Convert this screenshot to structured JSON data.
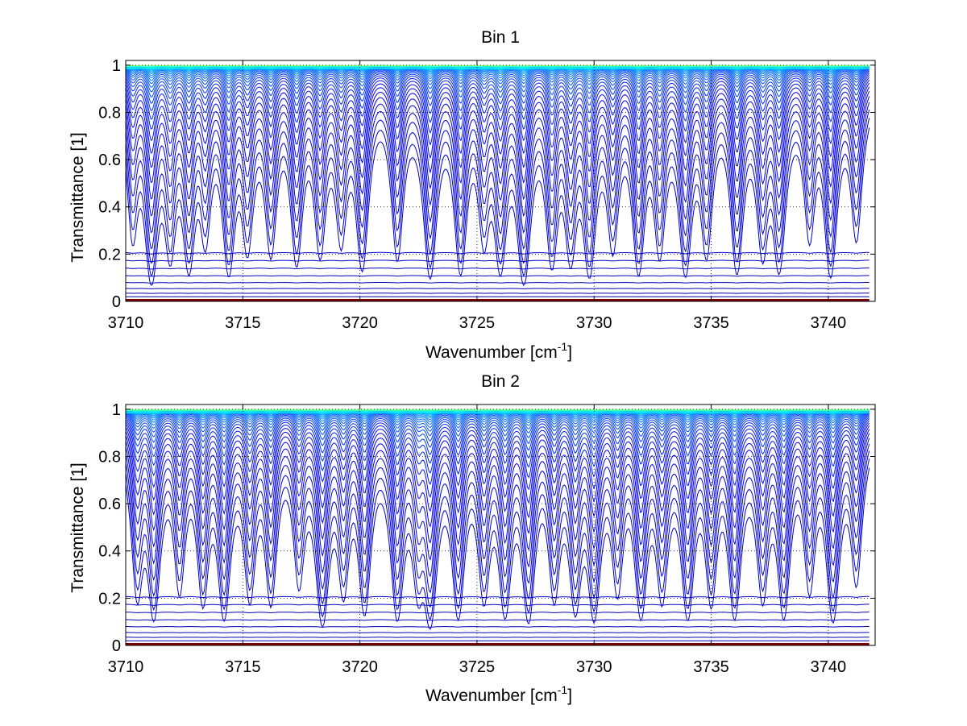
{
  "figure": {
    "background": "#ffffff"
  },
  "chart_data": [
    {
      "type": "line",
      "title": "Bin 1",
      "xlabel": "Wavenumber [cm",
      "xlabel_sup": "-1",
      "xlabel_tail": "]",
      "ylabel": "Transmittance [1]",
      "xlim": [
        3710,
        3742
      ],
      "ylim": [
        0,
        1.02
      ],
      "xticks": [
        3710,
        3715,
        3720,
        3725,
        3730,
        3735,
        3740
      ],
      "xtick_labels": [
        "3710",
        "3715",
        "3720",
        "3725",
        "3730",
        "3735",
        "3740"
      ],
      "yticks": [
        0,
        0.2,
        0.4,
        0.6,
        0.8,
        1
      ],
      "ytick_labels": [
        "0",
        "0.2",
        "0.4",
        "0.6",
        "0.8",
        "1"
      ],
      "grid": "dotted",
      "legend": "none",
      "colormap": "jet (dark red → orange → yellow → cyan), one color per curve",
      "absorption_lines": [
        {
          "x": 3710.3,
          "depth": 0.45
        },
        {
          "x": 3711.1,
          "depth": 0.9
        },
        {
          "x": 3711.9,
          "depth": 0.55
        },
        {
          "x": 3712.7,
          "depth": 0.7
        },
        {
          "x": 3713.4,
          "depth": 0.45
        },
        {
          "x": 3714.4,
          "depth": 0.75
        },
        {
          "x": 3715.2,
          "depth": 0.5
        },
        {
          "x": 3716.2,
          "depth": 0.55
        },
        {
          "x": 3717.3,
          "depth": 0.65
        },
        {
          "x": 3718.3,
          "depth": 0.55
        },
        {
          "x": 3719.2,
          "depth": 0.45
        },
        {
          "x": 3720.1,
          "depth": 0.7
        },
        {
          "x": 3721.6,
          "depth": 0.6
        },
        {
          "x": 3723.0,
          "depth": 0.8
        },
        {
          "x": 3724.3,
          "depth": 0.75
        },
        {
          "x": 3725.3,
          "depth": 0.45
        },
        {
          "x": 3726.0,
          "depth": 0.7
        },
        {
          "x": 3727.0,
          "depth": 0.9
        },
        {
          "x": 3728.2,
          "depth": 0.65
        },
        {
          "x": 3729.0,
          "depth": 0.6
        },
        {
          "x": 3729.8,
          "depth": 0.75
        },
        {
          "x": 3730.8,
          "depth": 0.5
        },
        {
          "x": 3731.9,
          "depth": 0.75
        },
        {
          "x": 3732.8,
          "depth": 0.55
        },
        {
          "x": 3733.9,
          "depth": 0.75
        },
        {
          "x": 3734.8,
          "depth": 0.55
        },
        {
          "x": 3736.1,
          "depth": 0.75
        },
        {
          "x": 3737.2,
          "depth": 0.55
        },
        {
          "x": 3737.9,
          "depth": 0.7
        },
        {
          "x": 3739.2,
          "depth": 0.45
        },
        {
          "x": 3740.1,
          "depth": 0.8
        },
        {
          "x": 3741.2,
          "depth": 0.45
        }
      ],
      "line_width_cm1": 0.22,
      "curve_count": 40
    },
    {
      "type": "line",
      "title": "Bin 2",
      "xlabel": "Wavenumber [cm",
      "xlabel_sup": "-1",
      "xlabel_tail": "]",
      "ylabel": "Transmittance [1]",
      "xlim": [
        3710,
        3742
      ],
      "ylim": [
        0,
        1.02
      ],
      "xticks": [
        3710,
        3715,
        3720,
        3725,
        3730,
        3735,
        3740
      ],
      "xtick_labels": [
        "3710",
        "3715",
        "3720",
        "3725",
        "3730",
        "3735",
        "3740"
      ],
      "yticks": [
        0,
        0.2,
        0.4,
        0.6,
        0.8,
        1
      ],
      "ytick_labels": [
        "0",
        "0.2",
        "0.4",
        "0.6",
        "0.8",
        "1"
      ],
      "grid": "dotted",
      "legend": "none",
      "colormap": "jet (dark red → orange → yellow → cyan), one color per curve",
      "absorption_lines": [
        {
          "x": 3710.5,
          "depth": 0.55
        },
        {
          "x": 3711.2,
          "depth": 0.75
        },
        {
          "x": 3712.3,
          "depth": 0.5
        },
        {
          "x": 3713.3,
          "depth": 0.6
        },
        {
          "x": 3714.2,
          "depth": 0.75
        },
        {
          "x": 3715.3,
          "depth": 0.55
        },
        {
          "x": 3716.2,
          "depth": 0.6
        },
        {
          "x": 3717.4,
          "depth": 0.45
        },
        {
          "x": 3718.4,
          "depth": 0.85
        },
        {
          "x": 3719.3,
          "depth": 0.5
        },
        {
          "x": 3720.2,
          "depth": 0.7
        },
        {
          "x": 3721.6,
          "depth": 0.75
        },
        {
          "x": 3722.5,
          "depth": 0.45
        },
        {
          "x": 3723.0,
          "depth": 0.85
        },
        {
          "x": 3724.2,
          "depth": 0.75
        },
        {
          "x": 3725.3,
          "depth": 0.55
        },
        {
          "x": 3726.2,
          "depth": 0.7
        },
        {
          "x": 3727.2,
          "depth": 0.8
        },
        {
          "x": 3728.3,
          "depth": 0.55
        },
        {
          "x": 3729.2,
          "depth": 0.65
        },
        {
          "x": 3730.0,
          "depth": 0.75
        },
        {
          "x": 3731.0,
          "depth": 0.5
        },
        {
          "x": 3732.0,
          "depth": 0.75
        },
        {
          "x": 3732.9,
          "depth": 0.55
        },
        {
          "x": 3734.0,
          "depth": 0.75
        },
        {
          "x": 3735.0,
          "depth": 0.6
        },
        {
          "x": 3736.0,
          "depth": 0.75
        },
        {
          "x": 3737.2,
          "depth": 0.55
        },
        {
          "x": 3738.1,
          "depth": 0.75
        },
        {
          "x": 3739.2,
          "depth": 0.5
        },
        {
          "x": 3740.2,
          "depth": 0.8
        },
        {
          "x": 3741.2,
          "depth": 0.45
        }
      ],
      "line_width_cm1": 0.22,
      "curve_count": 40
    }
  ]
}
